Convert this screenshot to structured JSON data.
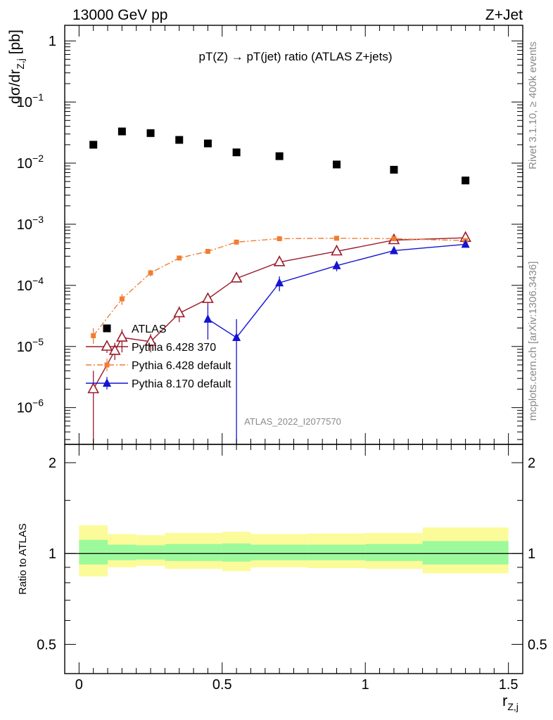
{
  "header": {
    "left_label": "13000 GeV pp",
    "right_label": "Z+Jet",
    "plot_title": "pT(Z) → pT(jet) ratio (ATLAS Z+jets)",
    "side_label_top": "Rivet 3.1.10, ≥ 400k events",
    "side_label_bottom": "mcplots.cern.ch [arXiv:1306.3436]",
    "watermark": "ATLAS_2022_I2077570"
  },
  "chart_data": [
    {
      "type": "scatter",
      "panel": "main",
      "ylabel": "dσ/dr_{Z,j} [pb]",
      "xlabel": "",
      "xlim": [
        -0.05,
        1.55
      ],
      "ylim": [
        2.5e-07,
        1.8
      ],
      "yscale": "log",
      "y_ticks": [
        {
          "value": 1,
          "label": "1",
          "exp": ""
        },
        {
          "value": 0.1,
          "label": "10",
          "exp": "−1"
        },
        {
          "value": 0.01,
          "label": "10",
          "exp": "−2"
        },
        {
          "value": 0.001,
          "label": "10",
          "exp": "−3"
        },
        {
          "value": 0.0001,
          "label": "10",
          "exp": "−4"
        },
        {
          "value": 1e-05,
          "label": "10",
          "exp": "−5"
        },
        {
          "value": 1e-06,
          "label": "10",
          "exp": "−6"
        }
      ],
      "legend_position": "lower-left",
      "series": [
        {
          "name": "ATLAS",
          "color": "#000000",
          "marker": "square",
          "x": [
            0.05,
            0.15,
            0.25,
            0.35,
            0.45,
            0.55,
            0.7,
            0.9,
            1.1,
            1.35
          ],
          "y": [
            0.02,
            0.033,
            0.031,
            0.024,
            0.021,
            0.015,
            0.013,
            0.0095,
            0.0078,
            0.0052
          ]
        },
        {
          "name": "Pythia 6.428 370",
          "color": "#9b1b2a",
          "marker": "open-triangle",
          "line": "solid",
          "x": [
            0.05,
            0.125,
            0.15,
            0.25,
            0.35,
            0.45,
            0.55,
            0.7,
            0.9,
            1.1,
            1.35
          ],
          "y": [
            2e-06,
            8.5e-06,
            1.4e-05,
            1.2e-05,
            3.5e-05,
            6e-05,
            0.00013,
            0.00024,
            0.00036,
            0.00055,
            0.0006
          ],
          "err_low": [
            1.8e-06,
            2.5e-06,
            6e-06,
            4e-06,
            1e-05,
            1.2e-05,
            1e-05,
            2e-05,
            4e-05,
            4e-05,
            4e-05
          ],
          "err_high": [
            2e-06,
            3e-06,
            5e-06,
            4e-06,
            1e-05,
            1.2e-05,
            1e-05,
            2e-05,
            4e-05,
            4e-05,
            4e-05
          ]
        },
        {
          "name": "Pythia 6.428 default",
          "color": "#f07d32",
          "marker": "square",
          "line": "dashdot",
          "x": [
            0.05,
            0.15,
            0.25,
            0.35,
            0.45,
            0.55,
            0.7,
            0.9,
            1.1,
            1.35
          ],
          "y": [
            1.5e-05,
            6e-05,
            0.00016,
            0.00028,
            0.00036,
            0.00051,
            0.00058,
            0.00059,
            0.00058,
            0.00054
          ],
          "err_low": [
            4e-06,
            1.2e-05,
            2e-05,
            2e-05,
            2e-05,
            3e-05,
            3e-05,
            3e-05,
            3e-05,
            3e-05
          ],
          "err_high": [
            5e-06,
            1.2e-05,
            2e-05,
            2e-05,
            2e-05,
            3e-05,
            3e-05,
            3e-05,
            3e-05,
            3e-05
          ]
        },
        {
          "name": "Pythia 8.170 default",
          "color": "#1414d2",
          "marker": "triangle",
          "line": "solid",
          "x": [
            0.45,
            0.55,
            0.7,
            0.9,
            1.1,
            1.35
          ],
          "y": [
            2.8e-05,
            1.4e-05,
            0.00011,
            0.00021,
            0.00037,
            0.00047
          ],
          "err_low": [
            1.5e-05,
            1.39e-05,
            3e-05,
            4e-05,
            3e-05,
            3e-05
          ],
          "err_high": [
            2e-05,
            1.4e-05,
            3e-05,
            4e-05,
            3e-05,
            3e-05
          ]
        }
      ]
    },
    {
      "type": "area",
      "panel": "ratio",
      "ylabel": "Ratio to ATLAS",
      "xlabel": "r_{Z,j}",
      "xlim": [
        -0.05,
        1.55
      ],
      "ylim": [
        0.4,
        2.3
      ],
      "yscale": "log",
      "y_ticks": [
        {
          "value": 0.5,
          "label": "0.5"
        },
        {
          "value": 1,
          "label": "1"
        },
        {
          "value": 2,
          "label": "2"
        }
      ],
      "x_ticks": [
        {
          "value": 0,
          "label": "0"
        },
        {
          "value": 0.5,
          "label": "0.5"
        },
        {
          "value": 1,
          "label": "1"
        },
        {
          "value": 1.5,
          "label": "1.5"
        }
      ],
      "bins": [
        {
          "x0": 0.0,
          "x1": 0.1,
          "inner_lo": 0.92,
          "inner_hi": 1.11,
          "outer_lo": 0.84,
          "outer_hi": 1.24
        },
        {
          "x0": 0.1,
          "x1": 0.2,
          "inner_lo": 0.95,
          "inner_hi": 1.07,
          "outer_lo": 0.9,
          "outer_hi": 1.16
        },
        {
          "x0": 0.2,
          "x1": 0.3,
          "inner_lo": 0.955,
          "inner_hi": 1.065,
          "outer_lo": 0.91,
          "outer_hi": 1.15
        },
        {
          "x0": 0.3,
          "x1": 0.4,
          "inner_lo": 0.945,
          "inner_hi": 1.075,
          "outer_lo": 0.89,
          "outer_hi": 1.17
        },
        {
          "x0": 0.4,
          "x1": 0.5,
          "inner_lo": 0.945,
          "inner_hi": 1.075,
          "outer_lo": 0.89,
          "outer_hi": 1.17
        },
        {
          "x0": 0.5,
          "x1": 0.6,
          "inner_lo": 0.94,
          "inner_hi": 1.08,
          "outer_lo": 0.875,
          "outer_hi": 1.18
        },
        {
          "x0": 0.6,
          "x1": 0.8,
          "inner_lo": 0.95,
          "inner_hi": 1.07,
          "outer_lo": 0.9,
          "outer_hi": 1.16
        },
        {
          "x0": 0.8,
          "x1": 1.0,
          "inner_lo": 0.95,
          "inner_hi": 1.07,
          "outer_lo": 0.895,
          "outer_hi": 1.165
        },
        {
          "x0": 1.0,
          "x1": 1.2,
          "inner_lo": 0.945,
          "inner_hi": 1.075,
          "outer_lo": 0.89,
          "outer_hi": 1.17
        },
        {
          "x0": 1.2,
          "x1": 1.5,
          "inner_lo": 0.92,
          "inner_hi": 1.1,
          "outer_lo": 0.86,
          "outer_hi": 1.22
        }
      ],
      "inner_color": "#9cfa9c",
      "outer_color": "#fbfb9a",
      "reference_line": 1
    }
  ]
}
